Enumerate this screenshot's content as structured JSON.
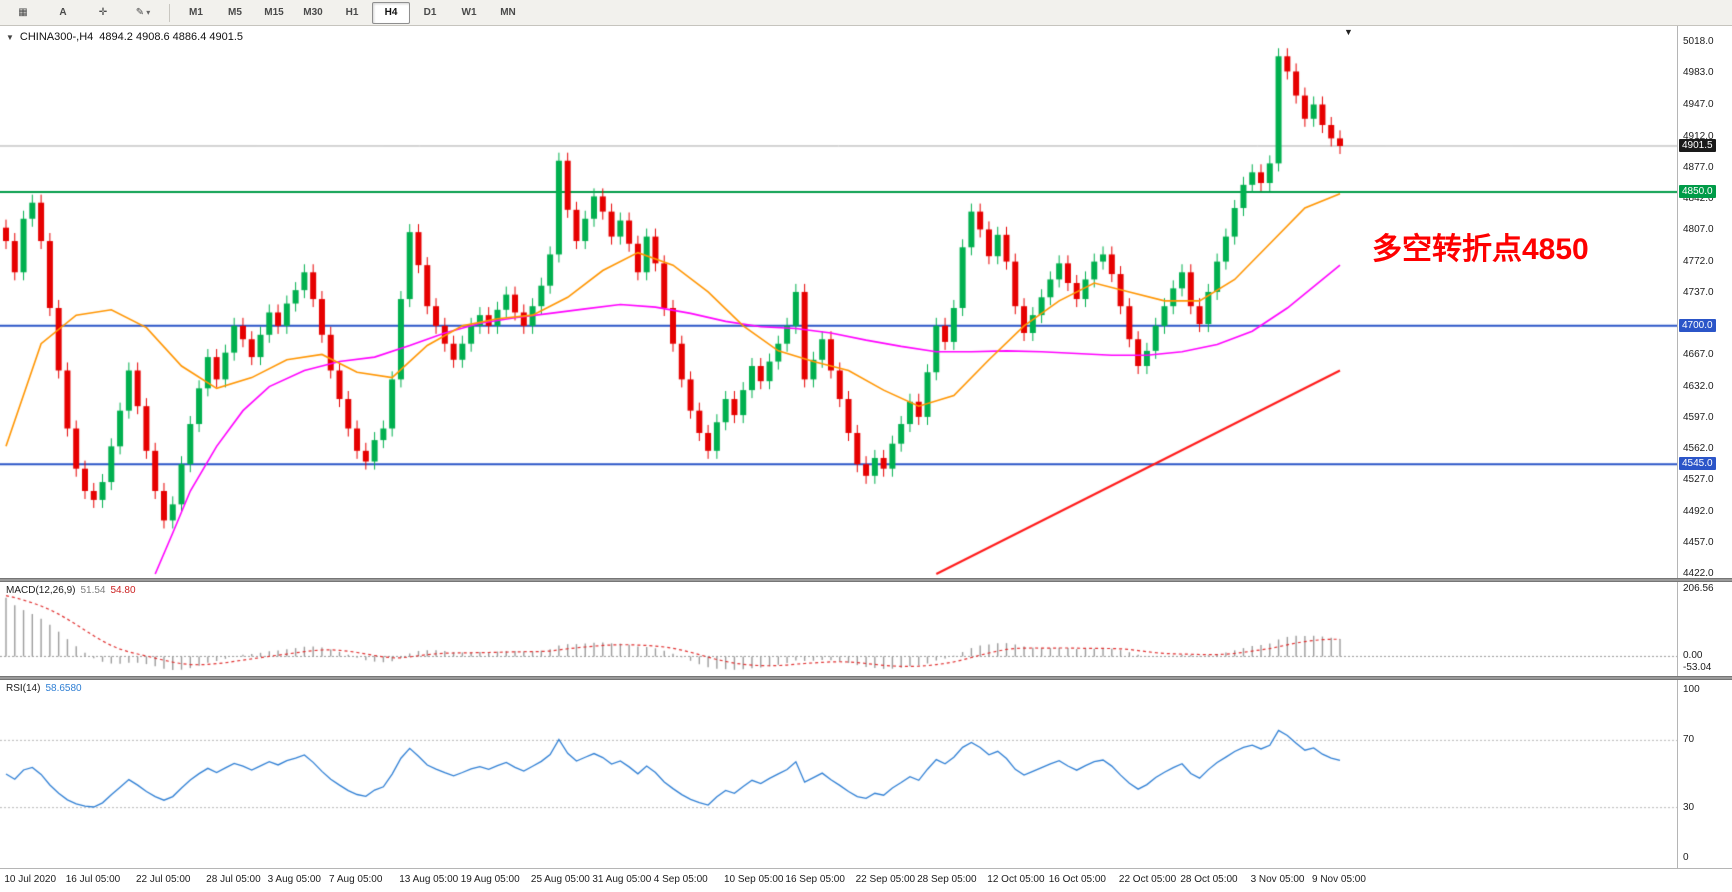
{
  "toolbar": {
    "tools": [
      {
        "name": "chart-grid-icon",
        "glyph": "▦"
      },
      {
        "name": "text-tool-button",
        "glyph": "A"
      },
      {
        "name": "crosshair-tool-button",
        "glyph": "✛"
      },
      {
        "name": "draw-tools-dropdown",
        "glyph": "✎",
        "dropdown": true
      }
    ],
    "dropdown_arrow": "▾",
    "timeframes": [
      "M1",
      "M5",
      "M15",
      "M30",
      "H1",
      "H4",
      "D1",
      "W1",
      "MN"
    ],
    "active_timeframe": "H4"
  },
  "header": {
    "collapse_arrow": "▼",
    "symbol_period": "CHINA300-,H4",
    "ohlc_text": "4894.2 4908.6 4886.4 4901.5"
  },
  "annotation": {
    "text": "多空转折点4850"
  },
  "price_axis": {
    "ticks": [
      "5018.0",
      "4983.0",
      "4947.0",
      "4912.0",
      "4877.0",
      "4842.0",
      "4807.0",
      "4772.0",
      "4737.0",
      "4702.0",
      "4667.0",
      "4632.0",
      "4597.0",
      "4562.0",
      "4527.0",
      "4492.0",
      "4457.0",
      "4422.0"
    ],
    "tags": [
      {
        "label": "4901.5",
        "price": 4901.5,
        "bg": "#1a1a1a"
      },
      {
        "label": "4850.0",
        "price": 4850,
        "bg": "#009b48"
      },
      {
        "label": "4700.0",
        "price": 4700,
        "bg": "#2b55c8"
      },
      {
        "label": "4545.0",
        "price": 4545,
        "bg": "#2b55c8"
      }
    ]
  },
  "chart_data": {
    "type": "candlestick",
    "symbol": "CHINA300-",
    "timeframe": "H4",
    "current_ohlc": {
      "open": 4894.2,
      "high": 4908.6,
      "low": 4886.4,
      "close": 4901.5
    },
    "price_range": [
      4422,
      5018
    ],
    "wick": 9,
    "up_color": "#00b04f",
    "down_color": "#e60000",
    "closes": [
      4795,
      4760,
      4820,
      4838,
      4795,
      4720,
      4650,
      4585,
      4540,
      4515,
      4505,
      4525,
      4565,
      4605,
      4650,
      4610,
      4560,
      4515,
      4482,
      4500,
      4545,
      4590,
      4630,
      4665,
      4640,
      4670,
      4700,
      4685,
      4665,
      4690,
      4715,
      4700,
      4725,
      4740,
      4760,
      4730,
      4690,
      4650,
      4618,
      4585,
      4560,
      4548,
      4572,
      4585,
      4640,
      4730,
      4805,
      4768,
      4722,
      4700,
      4680,
      4662,
      4680,
      4700,
      4712,
      4700,
      4718,
      4735,
      4715,
      4700,
      4722,
      4745,
      4780,
      4885,
      4830,
      4795,
      4820,
      4845,
      4828,
      4800,
      4818,
      4792,
      4760,
      4800,
      4770,
      4720,
      4680,
      4640,
      4605,
      4580,
      4560,
      4592,
      4618,
      4600,
      4628,
      4655,
      4638,
      4660,
      4680,
      4700,
      4738,
      4640,
      4662,
      4685,
      4650,
      4618,
      4580,
      4545,
      4532,
      4552,
      4540,
      4568,
      4590,
      4615,
      4598,
      4648,
      4700,
      4682,
      4720,
      4788,
      4828,
      4808,
      4778,
      4802,
      4772,
      4722,
      4692,
      4712,
      4732,
      4752,
      4770,
      4748,
      4730,
      4752,
      4772,
      4780,
      4758,
      4722,
      4685,
      4655,
      4672,
      4700,
      4722,
      4742,
      4760,
      4722,
      4702,
      4738,
      4772,
      4800,
      4832,
      4858,
      4872,
      4860,
      4882,
      5002,
      4985,
      4958,
      4932,
      4948,
      4925,
      4910,
      4901.5
    ],
    "x_labels": [
      {
        "label": "10 Jul 2020",
        "i": 3
      },
      {
        "label": "16 Jul 05:00",
        "i": 10
      },
      {
        "label": "22 Jul 05:00",
        "i": 18
      },
      {
        "label": "28 Jul 05:00",
        "i": 26
      },
      {
        "label": "3 Aug 05:00",
        "i": 33
      },
      {
        "label": "7 Aug 05:00",
        "i": 40
      },
      {
        "label": "13 Aug 05:00",
        "i": 48
      },
      {
        "label": "19 Aug 05:00",
        "i": 55
      },
      {
        "label": "25 Aug 05:00",
        "i": 63
      },
      {
        "label": "31 Aug 05:00",
        "i": 70
      },
      {
        "label": "4 Sep 05:00",
        "i": 77
      },
      {
        "label": "10 Sep 05:00",
        "i": 85
      },
      {
        "label": "16 Sep 05:00",
        "i": 92
      },
      {
        "label": "22 Sep 05:00",
        "i": 100
      },
      {
        "label": "28 Sep 05:00",
        "i": 107
      },
      {
        "label": "12 Oct 05:00",
        "i": 115
      },
      {
        "label": "16 Oct 05:00",
        "i": 122
      },
      {
        "label": "22 Oct 05:00",
        "i": 130
      },
      {
        "label": "28 Oct 05:00",
        "i": 137
      },
      {
        "label": "3 Nov 05:00",
        "i": 145
      },
      {
        "label": "9 Nov 05:00",
        "i": 152
      }
    ],
    "overlays": {
      "hlines": [
        {
          "name": "current-price-line",
          "price": 4901.5,
          "color": "#a8a8a8",
          "width": 1
        },
        {
          "name": "pivot-line-4850",
          "price": 4850,
          "color": "#009b48",
          "width": 2
        },
        {
          "name": "support-line-4700",
          "price": 4700,
          "color": "#2b55c8",
          "width": 2
        },
        {
          "name": "support-line-4545",
          "price": 4545,
          "color": "#2b55c8",
          "width": 2
        }
      ],
      "ma_fast": {
        "color": "#ff9500",
        "points": [
          [
            0,
            4565
          ],
          [
            4,
            4680
          ],
          [
            8,
            4712
          ],
          [
            12,
            4718
          ],
          [
            16,
            4698
          ],
          [
            20,
            4655
          ],
          [
            24,
            4630
          ],
          [
            28,
            4642
          ],
          [
            32,
            4662
          ],
          [
            36,
            4668
          ],
          [
            40,
            4648
          ],
          [
            44,
            4642
          ],
          [
            48,
            4678
          ],
          [
            52,
            4700
          ],
          [
            56,
            4708
          ],
          [
            60,
            4712
          ],
          [
            64,
            4732
          ],
          [
            68,
            4762
          ],
          [
            72,
            4782
          ],
          [
            76,
            4768
          ],
          [
            80,
            4738
          ],
          [
            84,
            4700
          ],
          [
            88,
            4672
          ],
          [
            92,
            4660
          ],
          [
            96,
            4650
          ],
          [
            100,
            4628
          ],
          [
            104,
            4610
          ],
          [
            108,
            4622
          ],
          [
            112,
            4662
          ],
          [
            116,
            4700
          ],
          [
            120,
            4728
          ],
          [
            124,
            4748
          ],
          [
            128,
            4738
          ],
          [
            132,
            4728
          ],
          [
            136,
            4728
          ],
          [
            140,
            4752
          ],
          [
            144,
            4792
          ],
          [
            148,
            4832
          ],
          [
            152,
            4848
          ]
        ]
      },
      "ma_slow": {
        "color": "#ff00ff",
        "points": [
          [
            17,
            4422
          ],
          [
            19,
            4468
          ],
          [
            21,
            4515
          ],
          [
            24,
            4565
          ],
          [
            27,
            4605
          ],
          [
            30,
            4632
          ],
          [
            34,
            4650
          ],
          [
            38,
            4660
          ],
          [
            42,
            4665
          ],
          [
            46,
            4678
          ],
          [
            50,
            4692
          ],
          [
            54,
            4703
          ],
          [
            58,
            4709
          ],
          [
            62,
            4714
          ],
          [
            66,
            4719
          ],
          [
            70,
            4724
          ],
          [
            74,
            4721
          ],
          [
            78,
            4714
          ],
          [
            82,
            4705
          ],
          [
            86,
            4699
          ],
          [
            90,
            4697
          ],
          [
            94,
            4692
          ],
          [
            98,
            4684
          ],
          [
            102,
            4677
          ],
          [
            106,
            4671
          ],
          [
            110,
            4671
          ],
          [
            114,
            4672
          ],
          [
            118,
            4671
          ],
          [
            122,
            4669
          ],
          [
            126,
            4667
          ],
          [
            130,
            4667
          ],
          [
            134,
            4671
          ],
          [
            138,
            4679
          ],
          [
            142,
            4694
          ],
          [
            146,
            4720
          ],
          [
            152,
            4768
          ]
        ]
      },
      "trendline": {
        "color": "#ff1a1a",
        "points": [
          [
            106,
            4422
          ],
          [
            152,
            4650
          ]
        ]
      }
    }
  },
  "macd": {
    "title": "MACD(12,26,9)",
    "value_main": "51.54",
    "value_signal": "54.80",
    "params": {
      "fast": 12,
      "slow": 26,
      "signal": 9
    },
    "range": [
      -53.04,
      206.56
    ],
    "scale": [
      {
        "label": "206.56",
        "v": 206.56
      },
      {
        "label": "0.00",
        "v": 0
      },
      {
        "label": "-53.04",
        "v": -53.04
      }
    ]
  },
  "rsi": {
    "title": "RSI(14)",
    "value": "58.6580",
    "period": 14,
    "range": [
      0,
      100
    ],
    "levels": [
      70,
      30
    ],
    "scale": [
      {
        "label": "100",
        "v": 100
      },
      {
        "label": "70",
        "v": 70
      },
      {
        "label": "30",
        "v": 30
      },
      {
        "label": "0",
        "v": 0
      }
    ]
  }
}
